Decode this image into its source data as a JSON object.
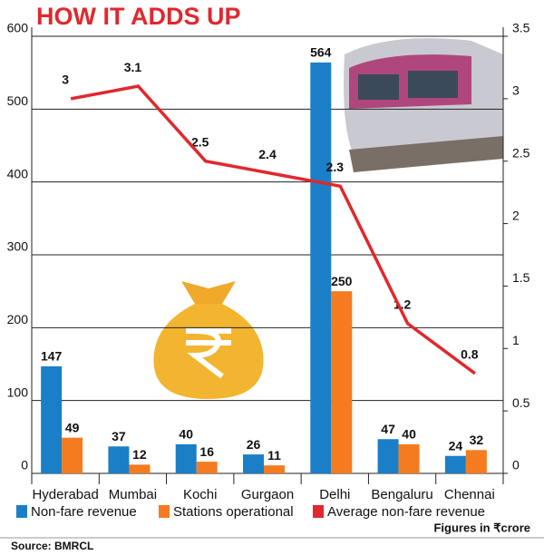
{
  "chart_data": {
    "type": "bar",
    "title": "HOW IT ADDS UP",
    "categories": [
      "Hyderabad",
      "Mumbai",
      "Kochi",
      "Gurgaon",
      "Delhi",
      "Bengaluru",
      "Chennai"
    ],
    "series": [
      {
        "name": "Non-fare revenue",
        "type": "bar",
        "axis": "y",
        "color": "#1a7fc7",
        "values": [
          147,
          37,
          40,
          26,
          564,
          47,
          24
        ]
      },
      {
        "name": "Stations operational",
        "type": "bar",
        "axis": "y",
        "color": "#f47b20",
        "values": [
          49,
          12,
          16,
          11,
          250,
          40,
          32
        ]
      },
      {
        "name": "Average non-fare revenue",
        "type": "line",
        "axis": "y2",
        "color": "#e0282e",
        "values": [
          3,
          3.1,
          2.5,
          2.4,
          2.3,
          1.2,
          0.8
        ]
      }
    ],
    "ylim": [
      0,
      600
    ],
    "yticks": [
      0,
      100,
      200,
      300,
      400,
      500,
      600
    ],
    "y2lim": [
      0,
      3.5
    ],
    "y2ticks": [
      0,
      0.5,
      1,
      1.5,
      2,
      2.5,
      3,
      3.5
    ],
    "grid": true,
    "note": "Figures in ₹crore",
    "source": "Source: BMRCL"
  }
}
